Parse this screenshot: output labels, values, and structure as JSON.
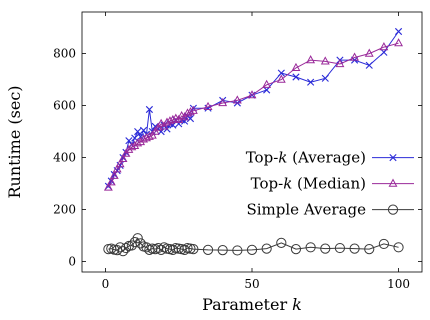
{
  "chart_data": {
    "type": "line",
    "xlabel": "Parameter k",
    "ylabel": "Runtime (sec)",
    "xlim": [
      -8,
      108
    ],
    "ylim": [
      -40,
      960
    ],
    "xticks": [
      0,
      50,
      100
    ],
    "yticks": [
      0,
      200,
      400,
      600,
      800
    ],
    "grid": false,
    "legend_position": "middle-right",
    "series": [
      {
        "name": "Top-k (Average)",
        "marker": "x",
        "color": "#2b2bd8",
        "x": [
          1,
          2,
          3,
          4,
          5,
          6,
          7,
          8,
          9,
          10,
          11,
          12,
          13,
          14,
          15,
          16,
          17,
          18,
          19,
          20,
          21,
          22,
          23,
          24,
          25,
          26,
          27,
          28,
          29,
          30,
          35,
          40,
          45,
          50,
          55,
          60,
          65,
          70,
          75,
          80,
          85,
          90,
          95,
          100
        ],
        "y": [
          290,
          310,
          335,
          350,
          370,
          400,
          420,
          465,
          450,
          475,
          500,
          480,
          505,
          490,
          585,
          500,
          520,
          510,
          500,
          525,
          510,
          530,
          525,
          545,
          530,
          545,
          540,
          560,
          550,
          590,
          590,
          620,
          610,
          640,
          660,
          725,
          710,
          690,
          705,
          775,
          775,
          755,
          805,
          885
        ]
      },
      {
        "name": "Top-k (Median)",
        "marker": "triangle",
        "color": "#9a2a9a",
        "x": [
          1,
          2,
          3,
          4,
          5,
          6,
          7,
          8,
          9,
          10,
          11,
          12,
          13,
          14,
          15,
          16,
          17,
          18,
          19,
          20,
          21,
          22,
          23,
          24,
          25,
          26,
          27,
          28,
          29,
          30,
          35,
          40,
          45,
          50,
          55,
          60,
          65,
          70,
          75,
          80,
          85,
          90,
          95,
          100
        ],
        "y": [
          285,
          305,
          330,
          355,
          375,
          395,
          415,
          430,
          440,
          445,
          455,
          460,
          470,
          475,
          480,
          485,
          500,
          515,
          530,
          520,
          535,
          540,
          545,
          550,
          545,
          560,
          555,
          570,
          575,
          580,
          595,
          610,
          620,
          640,
          680,
          700,
          745,
          775,
          770,
          760,
          785,
          800,
          825,
          840
        ]
      },
      {
        "name": "Simple Average",
        "marker": "circle",
        "color": "#3a3a3a",
        "x": [
          1,
          2,
          3,
          4,
          5,
          6,
          7,
          8,
          9,
          10,
          11,
          12,
          13,
          14,
          15,
          16,
          17,
          18,
          19,
          20,
          21,
          22,
          23,
          24,
          25,
          26,
          27,
          28,
          29,
          30,
          35,
          40,
          45,
          50,
          55,
          60,
          65,
          70,
          75,
          80,
          85,
          90,
          95,
          100
        ],
        "y": [
          48,
          50,
          46,
          44,
          55,
          40,
          52,
          60,
          62,
          75,
          90,
          70,
          58,
          55,
          45,
          50,
          48,
          52,
          45,
          55,
          50,
          48,
          45,
          52,
          50,
          48,
          45,
          52,
          50,
          48,
          45,
          44,
          43,
          45,
          50,
          72,
          48,
          55,
          50,
          52,
          50,
          48,
          68,
          55
        ]
      }
    ]
  }
}
